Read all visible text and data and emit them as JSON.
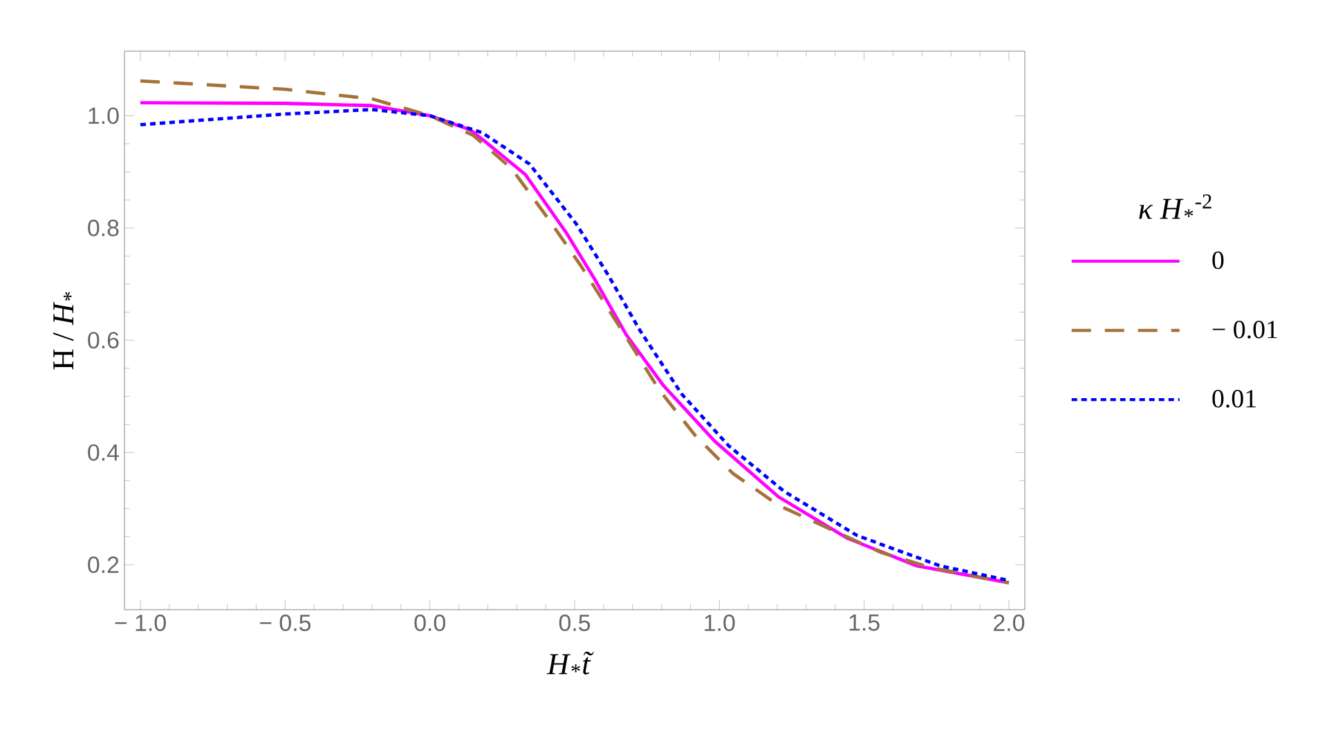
{
  "chart_data": {
    "type": "line",
    "xlabel": "*H*$_{*}$*t̃*",
    "ylabel": "H / *H*$_{*}$",
    "legend_title": "*κ H*$_{*}$$^{-2}$",
    "legend": "right",
    "xlim": [
      -1.055,
      2.055
    ],
    "ylim": [
      0.12,
      1.115
    ],
    "xticks": [
      {
        "value": -1.0,
        "label": "− 1.0"
      },
      {
        "value": -0.5,
        "label": "− 0.5"
      },
      {
        "value": 0.0,
        "label": "0.0"
      },
      {
        "value": 0.5,
        "label": "0.5"
      },
      {
        "value": 1.0,
        "label": "1.0"
      },
      {
        "value": 1.5,
        "label": "1.5"
      },
      {
        "value": 2.0,
        "label": "2.0"
      }
    ],
    "yticks": [
      0.2,
      0.4,
      0.6,
      0.8,
      {
        "value": 1.0,
        "label": "1.0"
      }
    ],
    "grid": false,
    "series": [
      {
        "name": "0",
        "color": "#ff00ff",
        "line_style": "solid",
        "x": [
          -1.0,
          -0.5,
          -0.2,
          0.0,
          0.139,
          0.186,
          0.33,
          0.473,
          0.569,
          0.678,
          0.807,
          0.984,
          1.204,
          1.443,
          1.682,
          2.0
        ],
        "values": [
          1.023,
          1.022,
          1.018,
          1.0,
          0.975,
          0.956,
          0.895,
          0.79,
          0.709,
          0.61,
          0.519,
          0.42,
          0.321,
          0.247,
          0.198,
          0.168
        ]
      },
      {
        "name": "− 0.01",
        "color": "#a5723a",
        "line_style": "dashed",
        "x": [
          -1.0,
          -0.5,
          -0.2,
          0.0,
          0.15,
          0.282,
          0.411,
          0.521,
          0.664,
          0.793,
          0.917,
          1.046,
          1.204,
          1.381,
          1.558,
          1.73,
          2.0
        ],
        "values": [
          1.062,
          1.047,
          1.03,
          1.0,
          0.965,
          0.906,
          0.815,
          0.733,
          0.617,
          0.511,
          0.43,
          0.363,
          0.306,
          0.264,
          0.222,
          0.195,
          0.168
        ]
      },
      {
        "name": "0.01",
        "color": "#0000ff",
        "line_style": "dotted",
        "x": [
          -1.0,
          -0.5,
          -0.2,
          0.0,
          0.18,
          0.344,
          0.506,
          0.616,
          0.726,
          0.87,
          1.032,
          1.223,
          1.476,
          1.763,
          2.0
        ],
        "values": [
          0.984,
          1.003,
          1.011,
          1.0,
          0.97,
          0.914,
          0.807,
          0.716,
          0.617,
          0.504,
          0.412,
          0.331,
          0.252,
          0.198,
          0.172
        ]
      }
    ]
  }
}
